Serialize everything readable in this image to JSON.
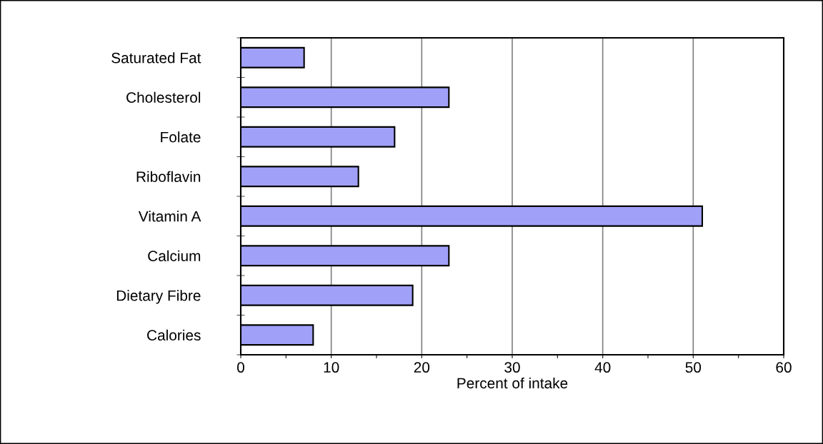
{
  "chart_data": {
    "type": "bar",
    "orientation": "horizontal",
    "xlabel": "Percent of intake",
    "categories": [
      "Saturated Fat",
      "Cholesterol",
      "Folate",
      "Riboflavin",
      "Vitamin A",
      "Calcium",
      "Dietary Fibre",
      "Calories"
    ],
    "values": [
      7,
      23,
      17,
      13,
      51,
      23,
      19,
      8
    ],
    "color": "#a0a0f8",
    "xlim": [
      0,
      60
    ],
    "xticks": [
      0,
      {
        "value": 5,
        "label": null
      },
      10,
      {
        "value": 15,
        "label": null
      },
      20,
      {
        "value": 25,
        "label": null
      },
      30,
      {
        "value": 35,
        "label": null
      },
      40,
      {
        "value": 45,
        "label": null
      },
      50,
      {
        "value": 55,
        "label": null
      },
      60
    ],
    "grid": "x",
    "legend": false
  }
}
